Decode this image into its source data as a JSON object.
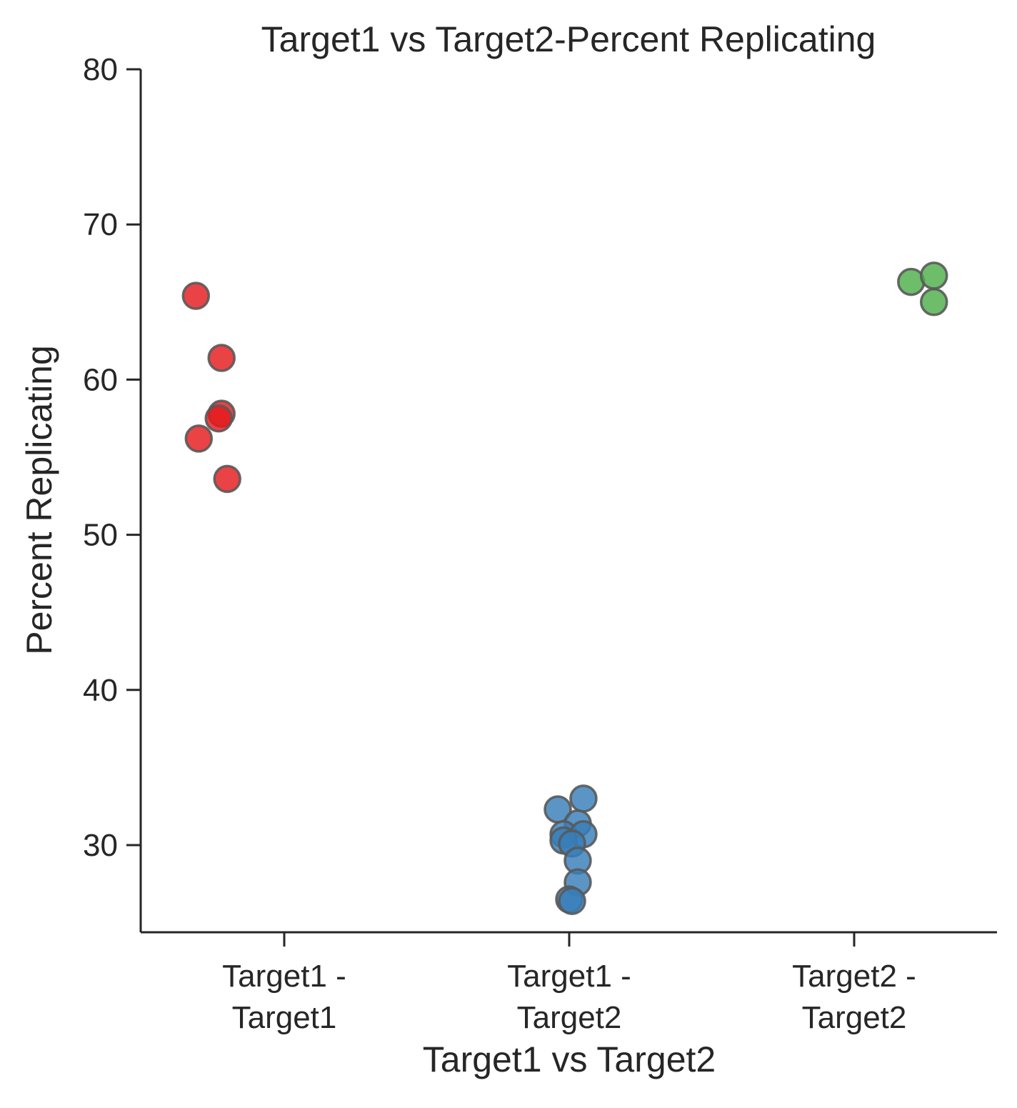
{
  "chart_data": {
    "type": "scatter",
    "title": "Target1 vs Target2-Percent Replicating",
    "xlabel": "Target1 vs Target2",
    "ylabel": "Percent Replicating",
    "ylim": [
      24.5,
      80
    ],
    "yticks": [
      30,
      40,
      50,
      60,
      70,
      80
    ],
    "grid": false,
    "categories": [
      [
        "Target1 -",
        "Target1"
      ],
      [
        "Target1 -",
        "Target2"
      ],
      [
        "Target2 -",
        "Target2"
      ]
    ],
    "colors": [
      "#e41a1c",
      "#377eb8",
      "#4daf4a"
    ],
    "series": [
      {
        "category_index": 0,
        "points": [
          {
            "jitter": -0.31,
            "y": 65.4
          },
          {
            "jitter": -0.22,
            "y": 61.4
          },
          {
            "jitter": -0.22,
            "y": 57.8
          },
          {
            "jitter": -0.23,
            "y": 57.5
          },
          {
            "jitter": -0.3,
            "y": 56.2
          },
          {
            "jitter": -0.2,
            "y": 53.6
          }
        ]
      },
      {
        "category_index": 1,
        "points": [
          {
            "jitter": 0.05,
            "y": 33.0
          },
          {
            "jitter": -0.04,
            "y": 32.3
          },
          {
            "jitter": 0.03,
            "y": 31.4
          },
          {
            "jitter": -0.02,
            "y": 30.7
          },
          {
            "jitter": 0.05,
            "y": 30.7
          },
          {
            "jitter": -0.02,
            "y": 30.3
          },
          {
            "jitter": 0.01,
            "y": 30.1
          },
          {
            "jitter": 0.03,
            "y": 29.0
          },
          {
            "jitter": 0.03,
            "y": 27.6
          },
          {
            "jitter": 0.0,
            "y": 26.5
          },
          {
            "jitter": 0.01,
            "y": 26.4
          }
        ]
      },
      {
        "category_index": 2,
        "points": [
          {
            "jitter": 0.2,
            "y": 66.3
          },
          {
            "jitter": 0.28,
            "y": 66.7
          },
          {
            "jitter": 0.28,
            "y": 65.0
          }
        ]
      }
    ]
  }
}
